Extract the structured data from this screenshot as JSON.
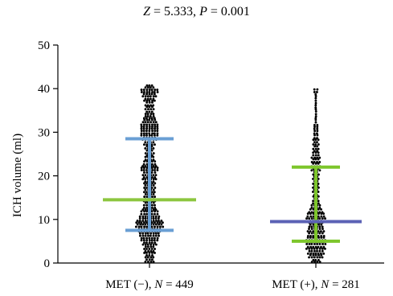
{
  "chart_data": {
    "type": "scatter",
    "title": {
      "z_label": "Z",
      "z_value": "= 5.333,",
      "p_label": "P",
      "p_value": "= 0.001"
    },
    "ylabel": "ICH volume (ml)",
    "ylim": [
      0,
      50
    ],
    "yticks": [
      "0",
      "10",
      "20",
      "30",
      "40",
      "50"
    ],
    "grid": false,
    "categories": [
      {
        "name": "MET (−),",
        "n_label": "N",
        "n_value": "= 449"
      },
      {
        "name": "MET (+),",
        "n_label": "N",
        "n_value": "= 281"
      }
    ],
    "series": [
      {
        "n": 449,
        "max": 41.5,
        "median": 14.5,
        "q1": 7.5,
        "q3": 28.5,
        "median_color": "#8cc63f",
        "iqr_color": "#6a9fd4"
      },
      {
        "n": 281,
        "max": 40,
        "median": 9.5,
        "q1": 5.0,
        "q3": 22.0,
        "median_color": "#5b62b5",
        "iqr_color": "#7dc62b"
      }
    ],
    "point_color": "#000000"
  }
}
